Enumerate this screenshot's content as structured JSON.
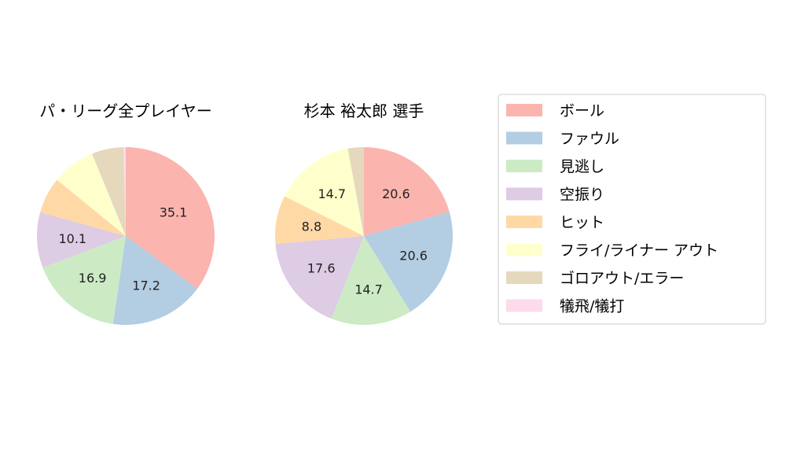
{
  "chart_data": [
    {
      "type": "pie",
      "title": "パ・リーグ全プレイヤー",
      "categories": [
        "ボール",
        "ファウル",
        "見逃し",
        "空振り",
        "ヒット",
        "フライ/ライナー アウト",
        "ゴロアウト/エラー",
        "犠飛/犠打"
      ],
      "values": [
        35.1,
        17.2,
        16.9,
        10.1,
        6.6,
        7.9,
        5.8,
        0.4
      ],
      "labels": [
        "35.1",
        "17.2",
        "16.9",
        "10.1",
        "",
        "",
        "",
        ""
      ]
    },
    {
      "type": "pie",
      "title": "杉本 裕太郎  選手",
      "categories": [
        "ボール",
        "ファウル",
        "見逃し",
        "空振り",
        "ヒット",
        "フライ/ライナー アウト",
        "ゴロアウト/エラー",
        "犠飛/犠打"
      ],
      "values": [
        20.6,
        20.6,
        14.7,
        17.6,
        8.8,
        14.7,
        2.9,
        0
      ],
      "labels": [
        "20.6",
        "20.6",
        "14.7",
        "17.6",
        "8.8",
        "14.7",
        "",
        ""
      ]
    }
  ],
  "legend": {
    "placement": "right",
    "items": [
      {
        "label": "ボール",
        "color": "#fbb4ae"
      },
      {
        "label": "ファウル",
        "color": "#b3cde3"
      },
      {
        "label": "見逃し",
        "color": "#ccebc5"
      },
      {
        "label": "空振り",
        "color": "#decbe4"
      },
      {
        "label": "ヒット",
        "color": "#fed9a6"
      },
      {
        "label": "フライ/ライナー アウト",
        "color": "#ffffcc"
      },
      {
        "label": "ゴロアウト/エラー",
        "color": "#e5d8bd"
      },
      {
        "label": "犠飛/犠打",
        "color": "#fddaec"
      }
    ]
  }
}
